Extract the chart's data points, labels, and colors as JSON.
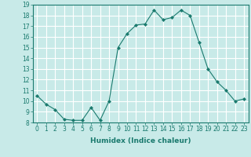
{
  "x": [
    0,
    1,
    2,
    3,
    4,
    5,
    6,
    7,
    8,
    9,
    10,
    11,
    12,
    13,
    14,
    15,
    16,
    17,
    18,
    19,
    20,
    21,
    22,
    23
  ],
  "y": [
    10.5,
    9.7,
    9.2,
    8.3,
    8.2,
    8.2,
    9.4,
    8.2,
    10.0,
    15.0,
    16.3,
    17.1,
    17.2,
    18.5,
    17.6,
    17.8,
    18.5,
    18.0,
    15.5,
    13.0,
    11.8,
    11.0,
    10.0,
    10.2
  ],
  "line_color": "#1a7a6e",
  "marker": "D",
  "marker_size": 2.0,
  "bg_color": "#c8eae8",
  "grid_color": "#ffffff",
  "xlabel": "Humidex (Indice chaleur)",
  "ylim": [
    8,
    19
  ],
  "xlim": [
    -0.5,
    23.5
  ],
  "yticks": [
    8,
    9,
    10,
    11,
    12,
    13,
    14,
    15,
    16,
    17,
    18,
    19
  ],
  "xticks": [
    0,
    1,
    2,
    3,
    4,
    5,
    6,
    7,
    8,
    9,
    10,
    11,
    12,
    13,
    14,
    15,
    16,
    17,
    18,
    19,
    20,
    21,
    22,
    23
  ],
  "label_fontsize": 6.5,
  "tick_fontsize": 5.5,
  "linewidth": 0.8
}
